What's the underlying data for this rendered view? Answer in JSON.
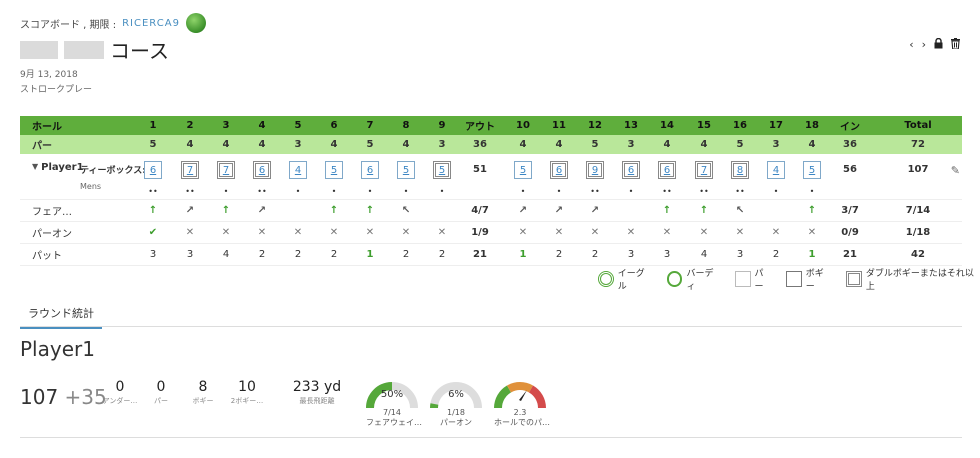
{
  "header": {
    "prefix": "スコアボード , 期限 :",
    "user": "RICERCA9",
    "course": "コース",
    "date": "9月 13, 2018",
    "mode": "ストロークプレー"
  },
  "nav": {
    "prev": "‹",
    "next": "›"
  },
  "table": {
    "hole_label": "ホール",
    "par_label": "パー",
    "out_label": "アウト",
    "in_label": "イン",
    "total_label": "Total",
    "holes": [
      "1",
      "2",
      "3",
      "4",
      "5",
      "6",
      "7",
      "8",
      "9",
      "10",
      "11",
      "12",
      "13",
      "14",
      "15",
      "16",
      "17",
      "18"
    ],
    "pars": [
      "5",
      "4",
      "4",
      "4",
      "3",
      "4",
      "5",
      "4",
      "3",
      "4",
      "4",
      "5",
      "3",
      "4",
      "4",
      "5",
      "3",
      "4"
    ],
    "par_out": "36",
    "par_in": "36",
    "par_total": "72",
    "player": {
      "name": "Player1",
      "tee_label": "ティーボックス:",
      "tee": "Mens",
      "scores": [
        "6",
        "7",
        "7",
        "6",
        "4",
        "5",
        "6",
        "5",
        "5",
        "5",
        "6",
        "9",
        "6",
        "6",
        "7",
        "8",
        "4",
        "5"
      ],
      "out": "51",
      "in": "56",
      "total": "107"
    },
    "fairway_label": "フェア…",
    "fairway_out": "4/7",
    "fairway_in": "3/7",
    "fairway_total": "7/14",
    "gir_label": "パーオン",
    "gir_out": "1/9",
    "gir_in": "0/9",
    "gir_total": "1/18",
    "putt_label": "パット",
    "putts": [
      "3",
      "3",
      "4",
      "2",
      "2",
      "2",
      "1",
      "2",
      "2",
      "1",
      "2",
      "2",
      "3",
      "3",
      "4",
      "3",
      "2",
      "1"
    ],
    "putt_out": "21",
    "putt_in": "21",
    "putt_total": "42"
  },
  "legend": {
    "eagle": "イーグル",
    "birdie": "バーディ",
    "par": "パー",
    "bogey": "ボギー",
    "double": "ダブルボギーまたはそれ以上"
  },
  "stats": {
    "tab": "ラウンド統計",
    "player": "Player1",
    "score": "107",
    "over": "+35",
    "under": "0",
    "under_label": "アンダー…",
    "par_count": "0",
    "par_count_label": "パー",
    "bogey": "8",
    "bogey_label": "ボギー",
    "double": "10",
    "double_label": "2ボギー…",
    "drive": "233 yd",
    "drive_label": "最長飛距離",
    "fw_pct": "50%",
    "fw_frac": "7/14",
    "fw_label": "フェアウェイ…",
    "gir_pct": "6%",
    "gir_frac": "1/18",
    "gir_label": "パーオン",
    "putt_avg": "2.3",
    "putt_avg_label": "ホールでのパ…"
  },
  "colors": {
    "header_green": "#5fae3c",
    "par_green": "#b9e79a",
    "link_blue": "#3c86c4"
  }
}
